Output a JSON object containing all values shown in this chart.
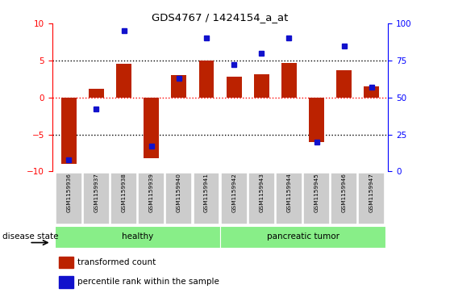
{
  "title": "GDS4767 / 1424154_a_at",
  "samples": [
    "GSM1159936",
    "GSM1159937",
    "GSM1159938",
    "GSM1159939",
    "GSM1159940",
    "GSM1159941",
    "GSM1159942",
    "GSM1159943",
    "GSM1159944",
    "GSM1159945",
    "GSM1159946",
    "GSM1159947"
  ],
  "transformed_count": [
    -9.0,
    1.2,
    4.6,
    -8.2,
    3.0,
    5.0,
    2.8,
    3.1,
    4.7,
    -6.0,
    3.7,
    1.5
  ],
  "percentile_rank_pct": [
    8,
    42,
    95,
    17,
    63,
    90,
    72,
    80,
    90,
    20,
    85,
    57
  ],
  "disease_state": [
    "healthy",
    "healthy",
    "healthy",
    "healthy",
    "healthy",
    "healthy",
    "pancreatic tumor",
    "pancreatic tumor",
    "pancreatic tumor",
    "pancreatic tumor",
    "pancreatic tumor",
    "pancreatic tumor"
  ],
  "bar_color": "#bb2200",
  "dot_color": "#1111cc",
  "ylim": [
    -10,
    10
  ],
  "y2lim": [
    0,
    100
  ],
  "yticks": [
    -10,
    -5,
    0,
    5,
    10
  ],
  "y2ticks": [
    0,
    25,
    50,
    75,
    100
  ],
  "healthy_color": "#88ee88",
  "tumor_color": "#88ee88",
  "disease_label": "disease state",
  "legend_red": "transformed count",
  "legend_blue": "percentile rank within the sample",
  "bar_width": 0.55
}
